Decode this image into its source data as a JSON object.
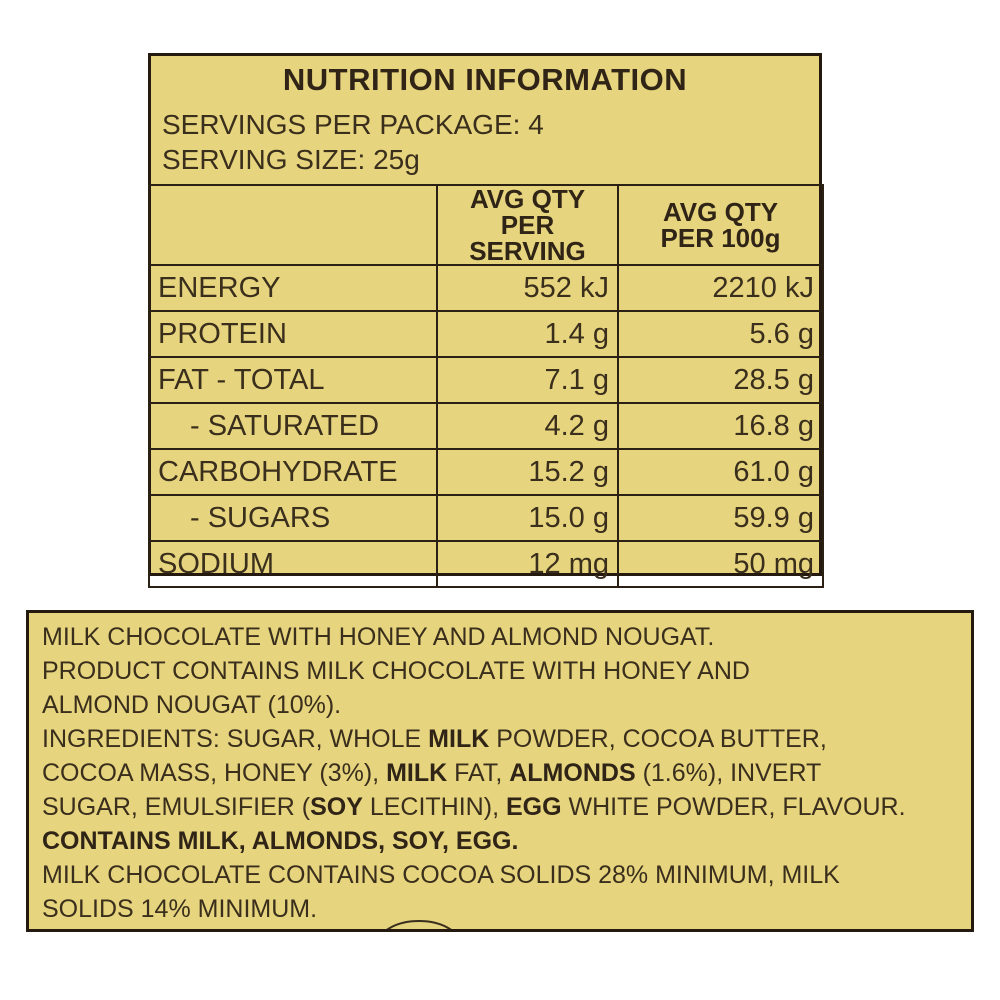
{
  "nutrition": {
    "title": "NUTRITION INFORMATION",
    "servings_per_package": "SERVINGS PER PACKAGE: 4",
    "serving_size": "SERVING SIZE: 25g",
    "headers": {
      "per_serving_line1": "AVG QTY",
      "per_serving_line2": "PER SERVING",
      "per_100g_line1": "AVG QTY",
      "per_100g_line2": "PER 100g"
    },
    "rows": [
      {
        "name": "ENERGY",
        "per_serving": "552 kJ",
        "per_100g": "2210 kJ"
      },
      {
        "name": "PROTEIN",
        "per_serving": "1.4 g",
        "per_100g": "5.6 g"
      },
      {
        "name": "FAT - TOTAL",
        "per_serving": "7.1 g",
        "per_100g": "28.5 g"
      },
      {
        "name": "- SATURATED",
        "per_serving": "4.2 g",
        "per_100g": "16.8 g"
      },
      {
        "name": "CARBOHYDRATE",
        "per_serving": "15.2 g",
        "per_100g": "61.0 g"
      },
      {
        "name": "- SUGARS",
        "per_serving": "15.0 g",
        "per_100g": "59.9 g"
      },
      {
        "name": "SODIUM",
        "per_serving": "12 mg",
        "per_100g": "50 mg"
      }
    ]
  },
  "ingredients": {
    "line1": "MILK CHOCOLATE WITH HONEY AND ALMOND NOUGAT.",
    "line2": "PRODUCT CONTAINS MILK CHOCOLATE WITH HONEY AND",
    "line3": "ALMOND NOUGAT (10%).",
    "line4": {
      "a": "INGREDIENTS: SUGAR, WHOLE ",
      "b": "MILK",
      "c": " POWDER, COCOA BUTTER,"
    },
    "line5": {
      "a": "COCOA MASS, HONEY (3%), ",
      "b": "MILK",
      "c": " FAT, ",
      "d": "ALMONDS",
      "e": " (1.6%), INVERT"
    },
    "line6": {
      "a": "SUGAR, EMULSIFIER (",
      "b": "SOY",
      "c": " LECITHIN), ",
      "d": "EGG",
      "e": " WHITE POWDER, FLAVOUR."
    },
    "line7": "CONTAINS MILK, ALMONDS, SOY, EGG.",
    "line8": "MILK CHOCOLATE CONTAINS COCOA SOLIDS 28% MINIMUM, MILK",
    "line9": "SOLIDS 14% MINIMUM."
  },
  "colors": {
    "label_background": "#e6d47e",
    "border": "#241a10",
    "text": "#3a2e1c"
  }
}
